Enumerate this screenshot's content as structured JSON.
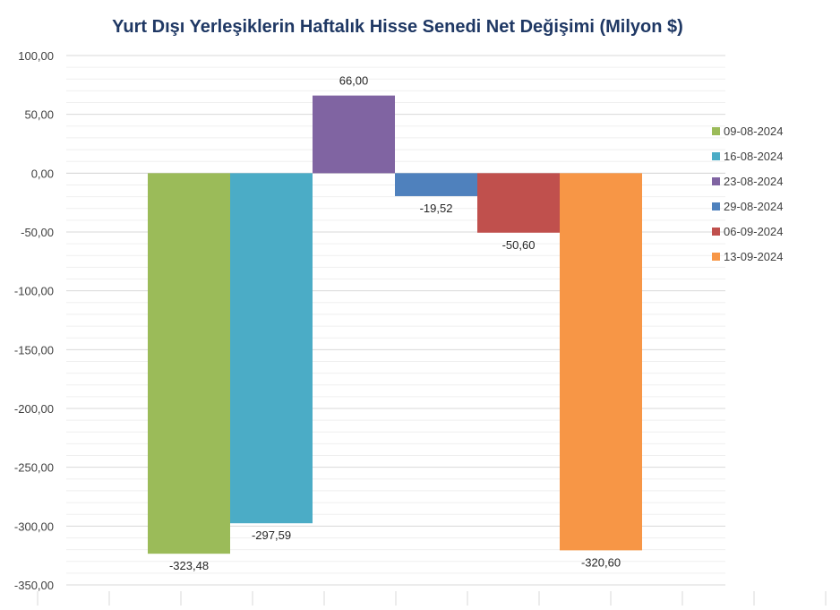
{
  "chart_data": {
    "type": "bar",
    "title": "Yurt Dışı Yerleşiklerin Haftalık Hisse Senedi Net Değişimi (Milyon $)",
    "xlabel": "",
    "ylabel": "",
    "ylim": [
      -350,
      100
    ],
    "y_tick_step": 50,
    "y_ticks": [
      "100,00",
      "50,00",
      "0,00",
      "-50,00",
      "-100,00",
      "-150,00",
      "-200,00",
      "-250,00",
      "-300,00",
      "-350,00"
    ],
    "grid": true,
    "legend_position": "right",
    "series": [
      {
        "name": "09-08-2024",
        "value": -323.48,
        "label": "-323,48",
        "color": "#9bbb59"
      },
      {
        "name": "16-08-2024",
        "value": -297.59,
        "label": "-297,59",
        "color": "#4bacc6"
      },
      {
        "name": "23-08-2024",
        "value": 66.0,
        "label": "66,00",
        "color": "#8064a2"
      },
      {
        "name": "29-08-2024",
        "value": -19.52,
        "label": "-19,52",
        "color": "#4f81bd"
      },
      {
        "name": "06-09-2024",
        "value": -50.6,
        "label": "-50,60",
        "color": "#c0504d"
      },
      {
        "name": "13-09-2024",
        "value": -320.6,
        "label": "-320,60",
        "color": "#f79646"
      }
    ]
  }
}
